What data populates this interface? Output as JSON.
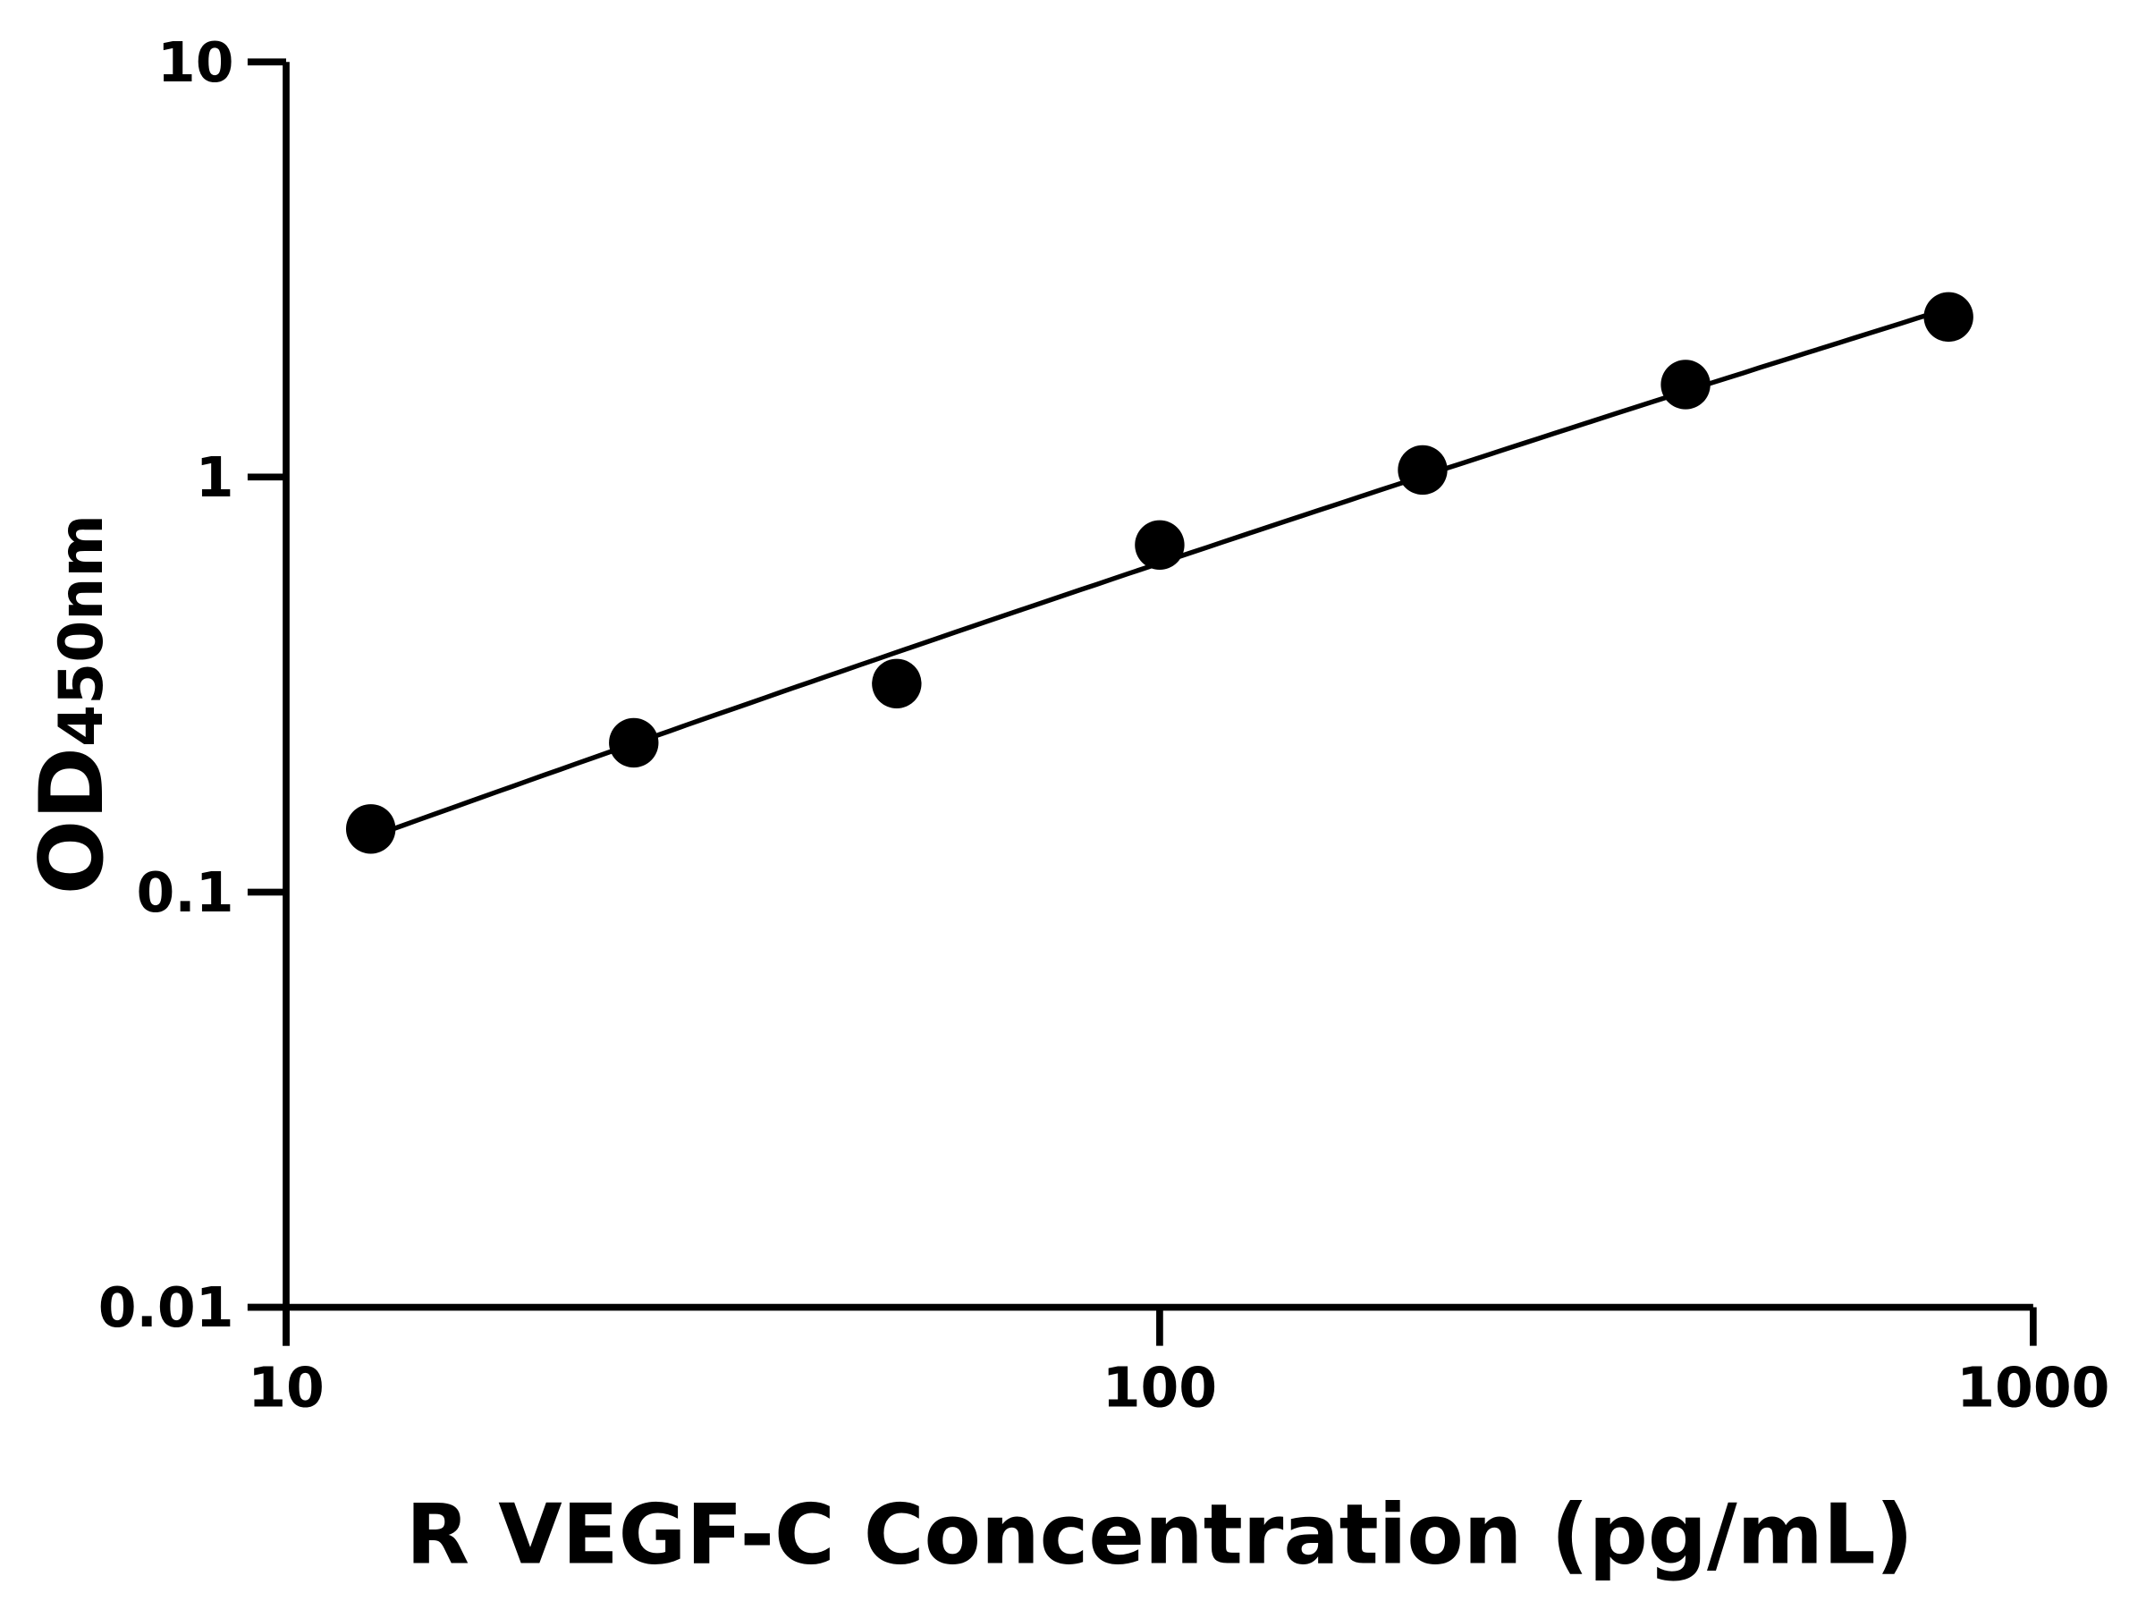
{
  "chart_data": {
    "type": "scatter",
    "xlabel": "R VEGF-C Concentration (pg/mL)",
    "ylabel_main": "OD",
    "ylabel_sub": "450nm",
    "x_scale": "log",
    "y_scale": "log",
    "xlim": [
      10,
      1000
    ],
    "ylim": [
      0.01,
      10
    ],
    "x_ticks": [
      {
        "value": 10,
        "label": "10"
      },
      {
        "value": 100,
        "label": "100"
      },
      {
        "value": 1000,
        "label": "1000"
      }
    ],
    "y_ticks": [
      {
        "value": 0.01,
        "label": "0.01"
      },
      {
        "value": 0.1,
        "label": "0.1"
      },
      {
        "value": 1,
        "label": "1"
      },
      {
        "value": 10,
        "label": "10"
      }
    ],
    "grid": false,
    "fit_line": true,
    "color": "#000000",
    "points": [
      {
        "x": 12.5,
        "y": 0.142
      },
      {
        "x": 25,
        "y": 0.229
      },
      {
        "x": 50,
        "y": 0.318
      },
      {
        "x": 100,
        "y": 0.686
      },
      {
        "x": 200,
        "y": 1.04
      },
      {
        "x": 400,
        "y": 1.67
      },
      {
        "x": 800,
        "y": 2.43
      }
    ]
  }
}
